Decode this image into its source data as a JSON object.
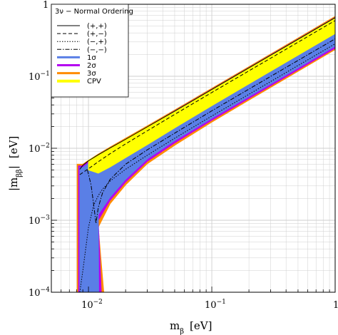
{
  "chart_data": {
    "type": "area",
    "xlabel": "m",
    "xlabel_sub": "β",
    "xlabel_unit": "[eV]",
    "ylabel": "|m",
    "ylabel_sub": "ββ",
    "ylabel_end": "|",
    "ylabel_unit": "[eV]",
    "x_scale": "log",
    "y_scale": "log",
    "xlim": [
      0.005,
      1
    ],
    "ylim": [
      0.0001,
      1
    ],
    "x_ticks": [
      {
        "value": 0.01,
        "base": "10",
        "exp": "−2"
      },
      {
        "value": 0.1,
        "base": "10",
        "exp": "−1"
      },
      {
        "value": 1,
        "base": "1",
        "exp": ""
      }
    ],
    "y_ticks": [
      {
        "value": 0.0001,
        "base": "10",
        "exp": "−4"
      },
      {
        "value": 0.001,
        "base": "10",
        "exp": "−3"
      },
      {
        "value": 0.01,
        "base": "10",
        "exp": "−2"
      },
      {
        "value": 0.1,
        "base": "10",
        "exp": "−1"
      },
      {
        "value": 1,
        "base": "1",
        "exp": ""
      }
    ],
    "grid": true,
    "legend_position": "top-left",
    "legend_title": "3ν − Normal Ordering",
    "colors": {
      "one_sigma": "#5a7fe6",
      "two_sigma": "#b400f0",
      "three_sigma": "#ff8c00",
      "cpv": "#ffff00",
      "grid": "#cfcfcf",
      "line": "#000000"
    },
    "series": [
      {
        "name": "(+,+)",
        "style": "solid",
        "x": [
          0.0085,
          0.009,
          0.01,
          0.012,
          0.015,
          0.02,
          0.03,
          0.05,
          0.1,
          0.2,
          0.5,
          1.0
        ],
        "y": [
          0.0051,
          0.0058,
          0.0067,
          0.0081,
          0.0101,
          0.0133,
          0.0198,
          0.0328,
          0.0654,
          0.131,
          0.326,
          0.652
        ]
      },
      {
        "name": "(+,−)",
        "style": "dashed",
        "x": [
          0.0085,
          0.009,
          0.01,
          0.012,
          0.015,
          0.02,
          0.03,
          0.05,
          0.1,
          0.2,
          0.5,
          1.0
        ],
        "y": [
          0.0043,
          0.0046,
          0.0052,
          0.0065,
          0.0084,
          0.0115,
          0.0175,
          0.0295,
          0.0594,
          0.119,
          0.297,
          0.594
        ]
      },
      {
        "name": "(−,+)",
        "style": "dotted",
        "x": [
          0.0085,
          0.009,
          0.01,
          0.011,
          0.012,
          0.013,
          0.015,
          0.02,
          0.03,
          0.05,
          0.1,
          0.2,
          0.5,
          1.0
        ],
        "y": [
          0.0001,
          0.0002,
          0.0008,
          0.0016,
          0.0022,
          0.0027,
          0.0035,
          0.0051,
          0.008,
          0.0138,
          0.028,
          0.0562,
          0.141,
          0.282
        ]
      },
      {
        "name": "(−,−)",
        "style": "dashdot",
        "x": [
          0.0098,
          0.0105,
          0.011,
          0.0115,
          0.012,
          0.013,
          0.015,
          0.02,
          0.03,
          0.05,
          0.1,
          0.2,
          0.5,
          1.0
        ],
        "y": [
          0.005,
          0.0031,
          0.0017,
          0.0009,
          0.0015,
          0.0024,
          0.0037,
          0.006,
          0.0095,
          0.0162,
          0.0331,
          0.0663,
          0.166,
          0.331
        ]
      }
    ],
    "bands": [
      {
        "name": "3σ",
        "color_key": "three_sigma",
        "x_min": 0.0081,
        "x_max": 0.0133,
        "y_upper": [
          0.006,
          0.0068,
          0.0083,
          0.0104,
          0.0138,
          0.0205,
          0.034,
          0.068,
          0.136,
          0.339,
          0.678
        ],
        "y_lower": [
          0.0001,
          0.0001,
          0.0008,
          0.0017,
          0.0031,
          0.0061,
          0.011,
          0.0231,
          0.0466,
          0.117,
          0.235
        ],
        "y_lower_right_start": 0.0001
      },
      {
        "name": "2σ",
        "color_key": "two_sigma",
        "x_min": 0.0083,
        "x_max": 0.0127,
        "y_upper": [
          0.0057,
          0.0065,
          0.008,
          0.01,
          0.0133,
          0.0198,
          0.033,
          0.066,
          0.132,
          0.329,
          0.658
        ],
        "y_lower": [
          0.0001,
          0.0001,
          0.001,
          0.0019,
          0.0034,
          0.0066,
          0.0119,
          0.0245,
          0.0492,
          0.123,
          0.246
        ]
      },
      {
        "name": "1σ",
        "color_key": "one_sigma",
        "x_min": 0.0085,
        "x_max": 0.0121,
        "y_upper": [
          0.0054,
          0.0062,
          0.0077,
          0.0097,
          0.0129,
          0.0193,
          0.0322,
          0.064,
          0.129,
          0.322,
          0.644
        ],
        "y_lower": [
          0.0001,
          0.0001,
          0.0012,
          0.0021,
          0.0037,
          0.0071,
          0.0127,
          0.026,
          0.0521,
          0.13,
          0.261
        ]
      },
      {
        "name": "CPV",
        "color_key": "cpv",
        "x": [
          0.01,
          0.012,
          0.015,
          0.02,
          0.03,
          0.05,
          0.1,
          0.2,
          0.5,
          1.0
        ],
        "y_upper": [
          0.0068,
          0.0081,
          0.0101,
          0.0133,
          0.0198,
          0.0328,
          0.0654,
          0.131,
          0.326,
          0.652
        ],
        "y_lower": [
          0.005,
          0.0045,
          0.0055,
          0.0074,
          0.0112,
          0.0192,
          0.039,
          0.0783,
          0.196,
          0.392
        ]
      }
    ],
    "band_x": [
      0.009,
      0.01,
      0.012,
      0.015,
      0.02,
      0.03,
      0.05,
      0.1,
      0.2,
      0.5,
      1.0
    ]
  }
}
